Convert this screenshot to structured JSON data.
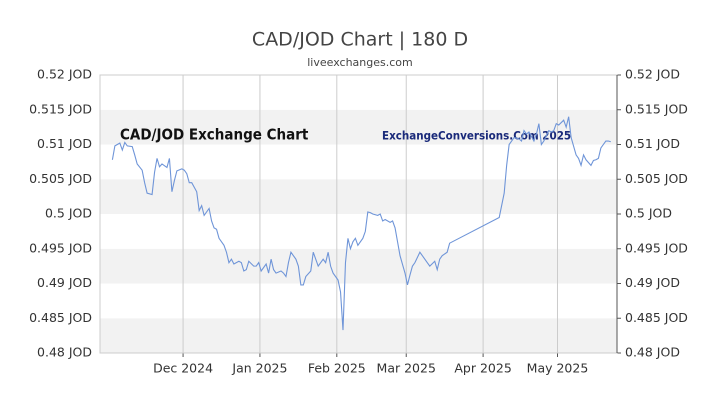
{
  "chart_data": {
    "type": "line",
    "title": "CAD/JOD Chart | 180 D",
    "subtitle": "liveexchanges.com",
    "annotations": [
      "CAD/JOD Exchange Chart",
      "ExchangeConversions.Com 2025"
    ],
    "x": [
      5,
      6,
      8,
      9,
      10,
      11,
      13,
      14,
      15,
      17,
      18,
      19,
      21,
      22,
      23,
      24,
      25,
      27,
      28,
      29,
      30,
      31,
      33,
      34,
      35,
      36,
      37,
      39,
      40,
      41,
      42,
      44,
      45,
      46,
      47,
      48,
      50,
      51,
      52,
      53,
      54,
      56,
      57,
      58,
      59,
      60,
      62,
      63,
      64,
      65,
      67,
      68,
      69,
      70,
      71,
      73,
      74,
      75,
      76,
      77,
      79,
      80,
      81,
      82,
      83,
      85,
      86,
      87,
      88,
      90,
      91,
      92,
      93,
      94,
      96,
      97,
      98,
      99,
      100,
      101,
      102,
      103,
      104,
      106,
      107,
      108,
      109,
      110,
      112,
      113,
      114,
      115,
      117,
      118,
      119,
      120,
      121,
      123,
      124,
      125,
      126,
      127,
      129,
      130,
      131,
      132,
      133,
      135,
      136,
      137,
      138,
      140,
      141,
      161,
      163,
      164,
      165,
      166,
      167,
      169,
      170,
      171,
      172,
      173,
      175,
      176,
      177,
      178,
      179,
      181,
      182,
      183,
      184,
      185,
      187,
      188,
      189,
      190,
      192,
      193,
      194,
      195,
      196,
      198,
      199,
      200,
      201,
      202,
      204,
      205,
      206
    ],
    "series": [
      {
        "name": "CAD/JOD",
        "color": "#6f95d8",
        "values": [
          0.5078,
          0.5098,
          0.5102,
          0.5092,
          0.5103,
          0.5098,
          0.5097,
          0.5085,
          0.5072,
          0.5063,
          0.5045,
          0.503,
          0.5028,
          0.506,
          0.508,
          0.5068,
          0.5072,
          0.5067,
          0.508,
          0.5032,
          0.5048,
          0.5062,
          0.5065,
          0.5063,
          0.5058,
          0.5045,
          0.5045,
          0.5032,
          0.5005,
          0.5012,
          0.4998,
          0.5008,
          0.499,
          0.498,
          0.4978,
          0.4965,
          0.4955,
          0.4945,
          0.493,
          0.4935,
          0.4928,
          0.4932,
          0.493,
          0.4918,
          0.492,
          0.4932,
          0.4925,
          0.4925,
          0.493,
          0.4918,
          0.4928,
          0.4915,
          0.4935,
          0.492,
          0.4915,
          0.4918,
          0.4915,
          0.491,
          0.493,
          0.4945,
          0.4935,
          0.4925,
          0.4898,
          0.4898,
          0.491,
          0.4918,
          0.4945,
          0.4935,
          0.4925,
          0.4935,
          0.493,
          0.4945,
          0.4925,
          0.4915,
          0.4905,
          0.4888,
          0.4833,
          0.493,
          0.4965,
          0.495,
          0.496,
          0.4965,
          0.4955,
          0.4965,
          0.4975,
          0.5003,
          0.5002,
          0.5,
          0.4998,
          0.5,
          0.499,
          0.4992,
          0.4988,
          0.499,
          0.498,
          0.496,
          0.494,
          0.4915,
          0.4898,
          0.4912,
          0.4925,
          0.493,
          0.4945,
          0.494,
          0.4935,
          0.493,
          0.4925,
          0.4932,
          0.492,
          0.4935,
          0.494,
          0.4945,
          0.4958,
          0.4995,
          0.503,
          0.507,
          0.51,
          0.5105,
          0.511,
          0.5108,
          0.5105,
          0.512,
          0.5115,
          0.5118,
          0.5105,
          0.5115,
          0.513,
          0.51,
          0.5105,
          0.512,
          0.5118,
          0.512,
          0.513,
          0.5128,
          0.5135,
          0.5125,
          0.514,
          0.511,
          0.5085,
          0.508,
          0.507,
          0.5085,
          0.5078,
          0.507,
          0.5077,
          0.5078,
          0.508,
          0.5095,
          0.5105,
          0.5105,
          0.5104
        ]
      }
    ],
    "xlim": [
      0,
      208.5
    ],
    "xticks": [
      {
        "value": 33.5,
        "label": "Dec 2024"
      },
      {
        "value": 64.5,
        "label": "Jan 2025"
      },
      {
        "value": 95.5,
        "label": "Feb 2025"
      },
      {
        "value": 123.5,
        "label": "Mar 2025"
      },
      {
        "value": 154.5,
        "label": "Apr 2025"
      },
      {
        "value": 184.5,
        "label": "May 2025"
      }
    ],
    "ylim": [
      0.48,
      0.52
    ],
    "yticks": [
      {
        "value": 0.48,
        "label": "0.48 JOD"
      },
      {
        "value": 0.485,
        "label": "0.485 JOD"
      },
      {
        "value": 0.49,
        "label": "0.49 JOD"
      },
      {
        "value": 0.495,
        "label": "0.495 JOD"
      },
      {
        "value": 0.5,
        "label": "0.5 JOD"
      },
      {
        "value": 0.505,
        "label": "0.505 JOD"
      },
      {
        "value": 0.51,
        "label": "0.51 JOD"
      },
      {
        "value": 0.515,
        "label": "0.515 JOD"
      },
      {
        "value": 0.52,
        "label": "0.52 JOD"
      }
    ],
    "grid": true
  }
}
